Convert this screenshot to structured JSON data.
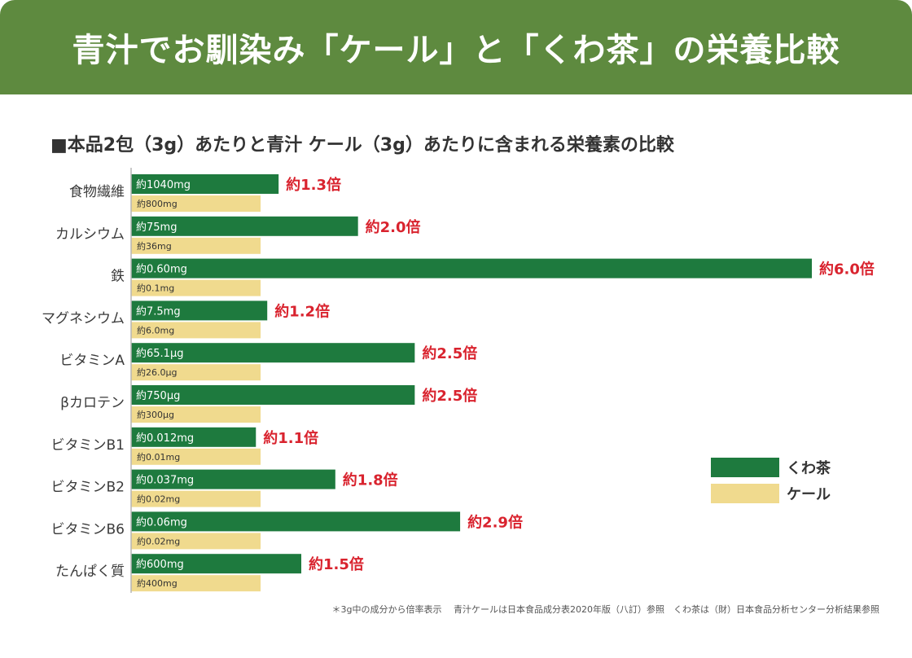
{
  "header": {
    "title": "青汁でお馴染み「ケール」と「くわ茶」の栄養比較"
  },
  "colors": {
    "header_bg": "#5e8a3f",
    "kuwacha": "#1e7a3e",
    "kale": "#f0da8e",
    "ratio_text": "#d9232e",
    "axis": "#b5b5b5"
  },
  "chart_data": {
    "type": "bar",
    "orientation": "horizontal",
    "title": "■本品2包（3g）あたりと青汁 ケール（3g）あたりに含まれる栄養素の比較",
    "categories": [
      "食物繊維",
      "カルシウム",
      "鉄",
      "マグネシウム",
      "ビタミンA",
      "βカロテン",
      "ビタミンB1",
      "ビタミンB2",
      "ビタミンB6",
      "たんぱく質"
    ],
    "ratios": [
      1.3,
      2.0,
      6.0,
      1.2,
      2.5,
      2.5,
      1.1,
      1.8,
      2.9,
      1.5
    ],
    "series": [
      {
        "name": "くわ茶",
        "labels": [
          "約1040mg",
          "約75mg",
          "約0.60mg",
          "約7.5mg",
          "約65.1μg",
          "約750μg",
          "約0.012mg",
          "約0.037mg",
          "約0.06mg",
          "約600mg"
        ],
        "ratio_labels": [
          "約1.3倍",
          "約2.0倍",
          "約6.0倍",
          "約1.2倍",
          "約2.5倍",
          "約2.5倍",
          "約1.1倍",
          "約1.8倍",
          "約2.9倍",
          "約1.5倍"
        ]
      },
      {
        "name": "ケール",
        "labels": [
          "約800mg",
          "約36mg",
          "約0.1mg",
          "約6.0mg",
          "約26.0μg",
          "約300μg",
          "約0.01mg",
          "約0.02mg",
          "約0.02mg",
          "約400mg"
        ]
      }
    ],
    "legend": {
      "position": "right",
      "entries": [
        "くわ茶",
        "ケール"
      ]
    }
  },
  "footnote": "＊3g中の成分から倍率表示　 青汁ケールは日本食品成分表2020年版（八訂）参照　くわ茶は（財）日本食品分析センター分析結果参照"
}
